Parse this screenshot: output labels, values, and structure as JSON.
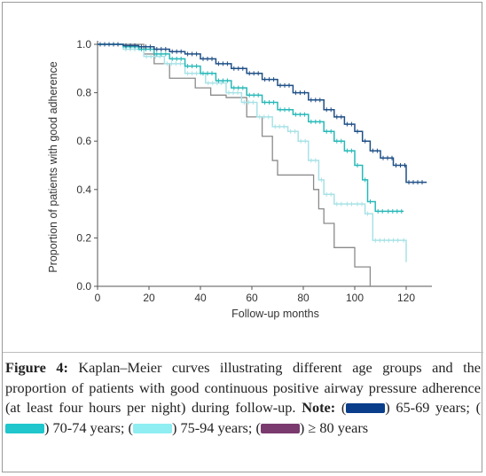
{
  "figure": {
    "caption_label": "Figure 4:",
    "caption_text": " Kaplan–Meier curves illustrating different age groups and the proportion of patients with good continuous positive airway pressure adherence (at least four hours per night) during follow-up. ",
    "note_label": "Note:",
    "legend": [
      {
        "label": "65-69 years;",
        "color": "#0a3d8a"
      },
      {
        "label": "70-74 years;",
        "color": "#1fc6cc"
      },
      {
        "label": "75-94 years;",
        "color": "#8eeef2"
      },
      {
        "label": "≥ 80 years",
        "color": "#7a3a6e"
      }
    ]
  },
  "chart_data": {
    "type": "line",
    "step": true,
    "title": "",
    "xlabel": "Follow-up months",
    "ylabel": "Proportion of patients with good adherence",
    "xlim": [
      0,
      130
    ],
    "ylim": [
      0,
      1.0
    ],
    "xticks": [
      0,
      20,
      40,
      60,
      80,
      100,
      120
    ],
    "yticks": [
      "0.0",
      "0.2",
      "0.4",
      "0.6",
      "0.8",
      "1.0"
    ],
    "grid": false,
    "series": [
      {
        "color": "#1f4f86",
        "width": 1.5,
        "censor": true,
        "x": [
          0,
          10,
          16,
          22,
          28,
          34,
          40,
          46,
          52,
          58,
          64,
          70,
          76,
          82,
          88,
          92,
          96,
          100,
          103,
          106,
          110,
          115,
          120,
          128
        ],
        "y": [
          1.0,
          0.995,
          0.99,
          0.98,
          0.97,
          0.96,
          0.94,
          0.92,
          0.9,
          0.88,
          0.855,
          0.83,
          0.8,
          0.77,
          0.73,
          0.7,
          0.67,
          0.64,
          0.6,
          0.56,
          0.53,
          0.5,
          0.43,
          0.43
        ]
      },
      {
        "color": "#29b8b8",
        "width": 1.5,
        "censor": true,
        "x": [
          0,
          10,
          16,
          22,
          28,
          34,
          40,
          46,
          52,
          58,
          64,
          70,
          76,
          82,
          88,
          92,
          96,
          100,
          103,
          105,
          108,
          112,
          119
        ],
        "y": [
          1.0,
          0.99,
          0.98,
          0.96,
          0.94,
          0.91,
          0.88,
          0.85,
          0.82,
          0.79,
          0.76,
          0.73,
          0.71,
          0.68,
          0.64,
          0.6,
          0.56,
          0.5,
          0.44,
          0.35,
          0.31,
          0.31,
          0.31
        ]
      },
      {
        "color": "#a8e2e6",
        "width": 1.5,
        "censor": true,
        "x": [
          0,
          10,
          18,
          26,
          34,
          42,
          50,
          56,
          62,
          68,
          74,
          78,
          82,
          86,
          88,
          92,
          96,
          100,
          104,
          107,
          114,
          118,
          120
        ],
        "y": [
          1.0,
          0.98,
          0.95,
          0.92,
          0.88,
          0.84,
          0.8,
          0.76,
          0.7,
          0.66,
          0.64,
          0.6,
          0.52,
          0.44,
          0.38,
          0.34,
          0.34,
          0.34,
          0.3,
          0.19,
          0.19,
          0.19,
          0.1
        ]
      },
      {
        "color": "#8a8a8a",
        "width": 1.3,
        "censor": false,
        "x": [
          0,
          18,
          22,
          28,
          38,
          44,
          50,
          58,
          64,
          68,
          70,
          84,
          86,
          88,
          92,
          100,
          104,
          106
        ],
        "y": [
          1.0,
          0.96,
          0.92,
          0.86,
          0.82,
          0.79,
          0.78,
          0.7,
          0.62,
          0.52,
          0.46,
          0.4,
          0.32,
          0.26,
          0.16,
          0.08,
          0.08,
          0.0
        ]
      }
    ]
  }
}
